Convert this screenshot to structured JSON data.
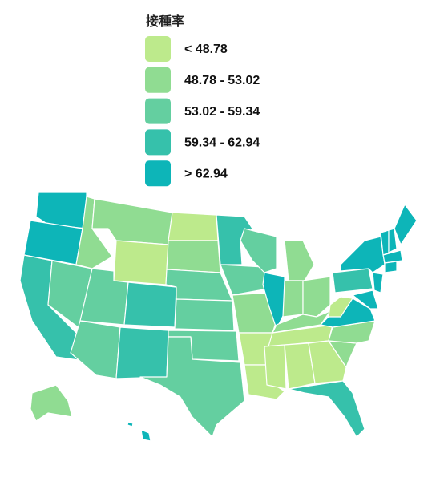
{
  "legend": {
    "title": "接種率",
    "items": [
      {
        "label": "< 48.78",
        "color": "#bdea8c"
      },
      {
        "label": "48.78 - 53.02",
        "color": "#90dc92"
      },
      {
        "label": "53.02 - 59.34",
        "color": "#64cfa0"
      },
      {
        "label": "59.34 - 62.94",
        "color": "#36c1ab"
      },
      {
        "label": "> 62.94",
        "color": "#0db5b8"
      }
    ]
  }
}
